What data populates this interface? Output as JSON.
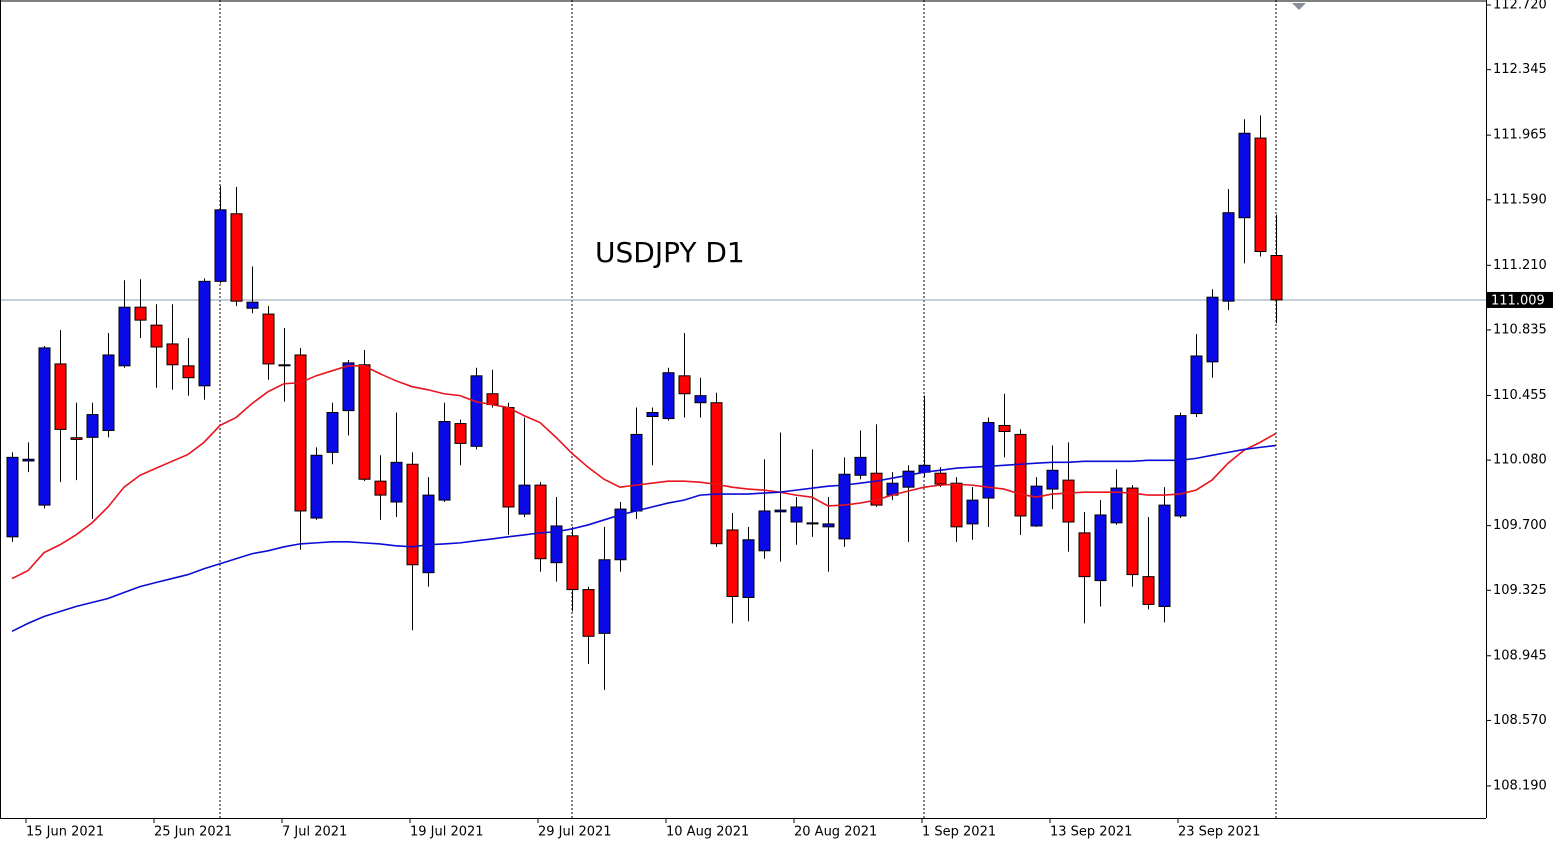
{
  "chart_data": {
    "type": "candlestick",
    "title": "USDJPY D1",
    "categories": [
      null,
      "15 Jun 2021",
      null,
      null,
      null,
      null,
      null,
      null,
      null,
      "25 Jun 2021",
      null,
      null,
      null,
      null,
      null,
      null,
      null,
      "7 Jul 2021",
      null,
      null,
      null,
      null,
      null,
      null,
      null,
      "19 Jul 2021",
      null,
      null,
      null,
      null,
      null,
      null,
      null,
      "29 Jul 2021",
      null,
      null,
      null,
      null,
      null,
      null,
      null,
      "10 Aug 2021",
      null,
      null,
      null,
      null,
      null,
      null,
      null,
      "20 Aug 2021",
      null,
      null,
      null,
      null,
      null,
      null,
      null,
      "1 Sep 2021",
      null,
      null,
      null,
      null,
      null,
      null,
      null,
      "13 Sep 2021",
      null,
      null,
      null,
      null,
      null,
      null,
      null,
      "23 Sep 2021",
      null,
      null,
      null,
      null,
      null,
      null
    ],
    "ohlc": {
      "open": [
        109.635,
        110.075,
        109.819,
        110.638,
        110.21,
        110.212,
        110.252,
        110.627,
        110.967,
        110.863,
        110.754,
        110.627,
        110.511,
        111.117,
        111.509,
        110.961,
        110.927,
        110.633,
        110.69,
        109.744,
        110.125,
        110.367,
        110.633,
        109.958,
        109.837,
        110.056,
        109.427,
        109.848,
        110.292,
        110.16,
        110.465,
        110.385,
        109.767,
        109.935,
        109.485,
        109.641,
        109.329,
        109.075,
        109.502,
        109.785,
        110.333,
        110.321,
        110.569,
        110.413,
        110.413,
        109.675,
        109.283,
        109.554,
        109.78,
        109.721,
        109.71,
        109.693,
        109.623,
        109.992,
        110.004,
        109.877,
        109.923,
        110.01,
        110.004,
        109.946,
        109.71,
        109.86,
        110.281,
        110.229,
        109.698,
        109.912,
        109.964,
        109.658,
        109.381,
        109.716,
        109.918,
        109.404,
        109.231,
        109.756,
        110.35,
        110.65,
        111.002,
        111.486,
        111.948,
        111.267
      ],
      "high": [
        110.125,
        110.183,
        110.742,
        110.834,
        110.413,
        110.413,
        110.817,
        111.123,
        111.129,
        110.984,
        110.984,
        110.788,
        111.134,
        111.671,
        111.665,
        111.203,
        110.973,
        110.846,
        110.731,
        110.154,
        110.413,
        110.661,
        110.719,
        110.108,
        110.356,
        110.125,
        109.981,
        110.413,
        110.315,
        110.616,
        110.604,
        110.413,
        110.327,
        109.952,
        109.866,
        109.693,
        109.346,
        109.693,
        109.837,
        110.385,
        110.385,
        110.616,
        110.817,
        110.558,
        110.471,
        109.773,
        109.693,
        110.085,
        110.24,
        109.866,
        110.142,
        109.866,
        110.096,
        110.252,
        110.287,
        110.01,
        110.05,
        110.454,
        110.039,
        109.981,
        109.923,
        110.327,
        110.465,
        110.258,
        109.981,
        110.165,
        110.183,
        109.779,
        109.848,
        110.027,
        109.935,
        109.75,
        109.923,
        110.356,
        110.811,
        111.071,
        111.653,
        112.057,
        112.08,
        111.503
      ],
      "low": [
        109.606,
        110.01,
        109.8,
        109.952,
        109.964,
        109.739,
        110.212,
        110.616,
        110.788,
        110.5,
        110.488,
        110.454,
        110.431,
        111.105,
        110.973,
        110.932,
        110.546,
        110.419,
        109.56,
        109.733,
        110.056,
        110.223,
        109.958,
        109.733,
        109.75,
        109.093,
        109.346,
        109.837,
        110.05,
        110.142,
        110.385,
        109.646,
        109.75,
        109.433,
        109.375,
        109.202,
        108.897,
        108.747,
        109.433,
        109.739,
        110.05,
        110.31,
        110.327,
        110.327,
        109.577,
        109.133,
        109.145,
        109.508,
        109.491,
        109.589,
        109.635,
        109.433,
        109.577,
        109.969,
        109.808,
        109.848,
        109.606,
        109.981,
        109.923,
        109.606,
        109.618,
        109.693,
        110.096,
        109.646,
        109.693,
        109.796,
        109.549,
        109.133,
        109.231,
        109.704,
        109.346,
        109.214,
        109.139,
        109.744,
        110.33,
        110.558,
        110.95,
        111.221,
        111.261,
        110.875
      ],
      "close": [
        110.096,
        110.085,
        110.731,
        110.258,
        110.2,
        110.344,
        110.69,
        110.967,
        110.892,
        110.736,
        110.633,
        110.558,
        111.117,
        111.532,
        111.002,
        110.996,
        110.638,
        110.627,
        109.785,
        110.108,
        110.356,
        110.644,
        109.969,
        109.877,
        110.067,
        109.473,
        109.877,
        110.304,
        110.177,
        110.569,
        110.402,
        109.808,
        109.935,
        109.508,
        109.698,
        109.329,
        109.058,
        109.502,
        109.796,
        110.229,
        110.356,
        110.587,
        110.465,
        110.454,
        109.595,
        109.289,
        109.618,
        109.785,
        109.79,
        109.808,
        109.716,
        109.71,
        109.998,
        110.096,
        109.819,
        109.946,
        110.016,
        110.05,
        109.941,
        109.693,
        109.848,
        110.298,
        110.246,
        109.756,
        109.929,
        110.021,
        109.721,
        109.404,
        109.762,
        109.918,
        109.416,
        109.243,
        109.819,
        110.338,
        110.684,
        111.025,
        111.515,
        111.976,
        111.29,
        111.009
      ]
    },
    "up_color": "#0a0ae8",
    "down_color": "#ff0000",
    "lines": [
      {
        "color": "#e8141e",
        "values": [
          109.393,
          109.439,
          109.543,
          109.589,
          109.646,
          109.716,
          109.808,
          109.923,
          109.992,
          110.033,
          110.073,
          110.113,
          110.183,
          110.281,
          110.327,
          110.408,
          110.477,
          110.523,
          110.529,
          110.569,
          110.598,
          110.627,
          110.627,
          110.581,
          110.54,
          110.506,
          110.488,
          110.465,
          110.454,
          110.419,
          110.402,
          110.385,
          110.338,
          110.298,
          110.212,
          110.119,
          110.039,
          109.969,
          109.923,
          109.935,
          109.946,
          109.958,
          109.958,
          109.952,
          109.94,
          109.923,
          109.912,
          109.906,
          109.894,
          109.877,
          109.865,
          109.814,
          109.819,
          109.831,
          109.848,
          109.877,
          109.9,
          109.923,
          109.935,
          109.94,
          109.935,
          109.923,
          109.912,
          109.883,
          109.865,
          109.883,
          109.889,
          109.894,
          109.894,
          109.894,
          109.889,
          109.877,
          109.877,
          109.883,
          109.906,
          109.964,
          110.062,
          110.137,
          110.183,
          110.235
        ]
      },
      {
        "color": "#0c0cd6",
        "values": [
          109.087,
          109.133,
          109.173,
          109.202,
          109.231,
          109.254,
          109.277,
          109.312,
          109.346,
          109.37,
          109.393,
          109.416,
          109.45,
          109.479,
          109.508,
          109.537,
          109.554,
          109.577,
          109.594,
          109.6,
          109.606,
          109.606,
          109.6,
          109.594,
          109.583,
          109.577,
          109.589,
          109.594,
          109.6,
          109.612,
          109.623,
          109.635,
          109.646,
          109.658,
          109.664,
          109.681,
          109.704,
          109.733,
          109.762,
          109.785,
          109.808,
          109.831,
          109.848,
          109.877,
          109.883,
          109.883,
          109.883,
          109.889,
          109.894,
          109.906,
          109.917,
          109.929,
          109.935,
          109.946,
          109.958,
          109.975,
          109.992,
          110.01,
          110.021,
          110.033,
          110.039,
          110.044,
          110.05,
          110.056,
          110.062,
          110.067,
          110.067,
          110.073,
          110.073,
          110.073,
          110.073,
          110.079,
          110.079,
          110.079,
          110.09,
          110.108,
          110.125,
          110.142,
          110.154,
          110.165
        ]
      }
    ],
    "last_price": 111.009,
    "ylim": [
      108.004,
      112.749
    ],
    "yticks": [
      {
        "value": 112.72,
        "label": "112.720"
      },
      112.345,
      111.965,
      {
        "value": 111.59,
        "label": "111.590"
      },
      {
        "value": 111.21,
        "label": "111.210"
      },
      110.835,
      110.455,
      {
        "value": 110.08,
        "label": "110.080"
      },
      {
        "value": 109.7,
        "label": "109.700"
      },
      109.325,
      108.945,
      {
        "value": 108.57,
        "label": "108.570"
      },
      {
        "value": 108.19,
        "label": "108.190"
      }
    ]
  }
}
